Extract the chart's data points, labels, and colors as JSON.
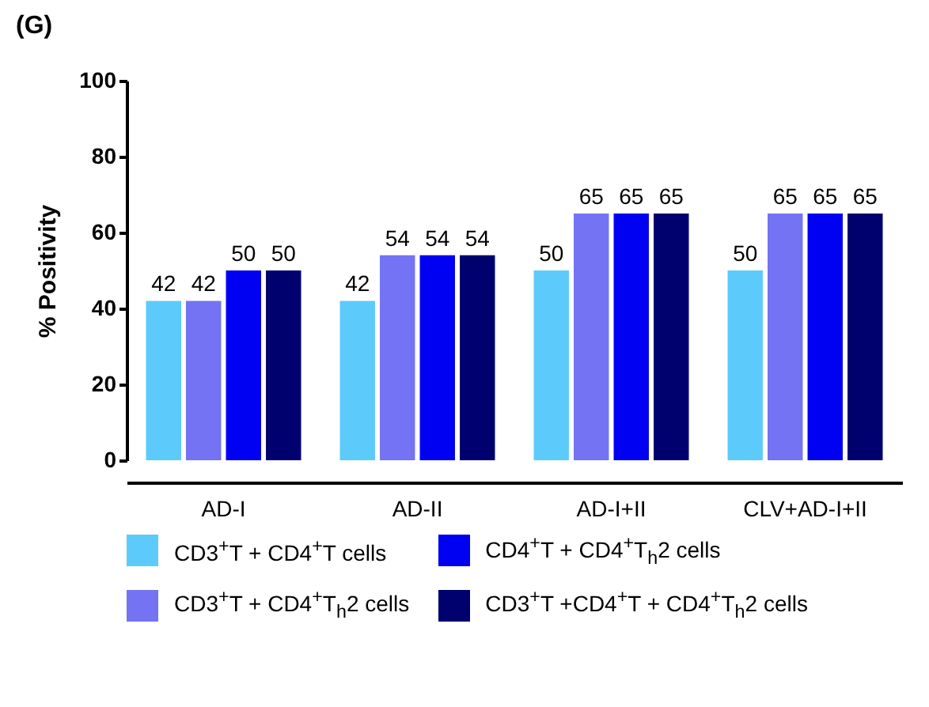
{
  "chart_data": {
    "type": "bar",
    "title": "(G)",
    "ylabel": "% Positivity",
    "categories": [
      "AD-I",
      "AD-II",
      "AD-I+II",
      "CLV+AD-I+II"
    ],
    "series": [
      {
        "name": "CD3$^{+}$T + CD4$^{+}$T cells",
        "color": "#5ccbfb",
        "values": [
          42,
          42,
          50,
          50
        ]
      },
      {
        "name": "CD3$^{+}$T + CD4$^{+}$T$_{h}$2 cells",
        "color": "#7373f3",
        "values": [
          42,
          54,
          65,
          65
        ]
      },
      {
        "name": "CD4$^{+}$T + CD4$^{+}$T$_{h}$2 cells",
        "color": "#0000f2",
        "values": [
          50,
          54,
          65,
          65
        ]
      },
      {
        "name": "CD3$^{+}$T +CD4$^{+}$T + CD4$^{+}$T$_{h}$2 cells",
        "color": "#00006e",
        "values": [
          50,
          54,
          65,
          65
        ]
      }
    ],
    "ylim": [
      0,
      100
    ],
    "yticks": [
      0,
      20,
      40,
      60,
      80,
      100
    ],
    "data_labels": true,
    "grid": false,
    "legend": "bottom"
  }
}
